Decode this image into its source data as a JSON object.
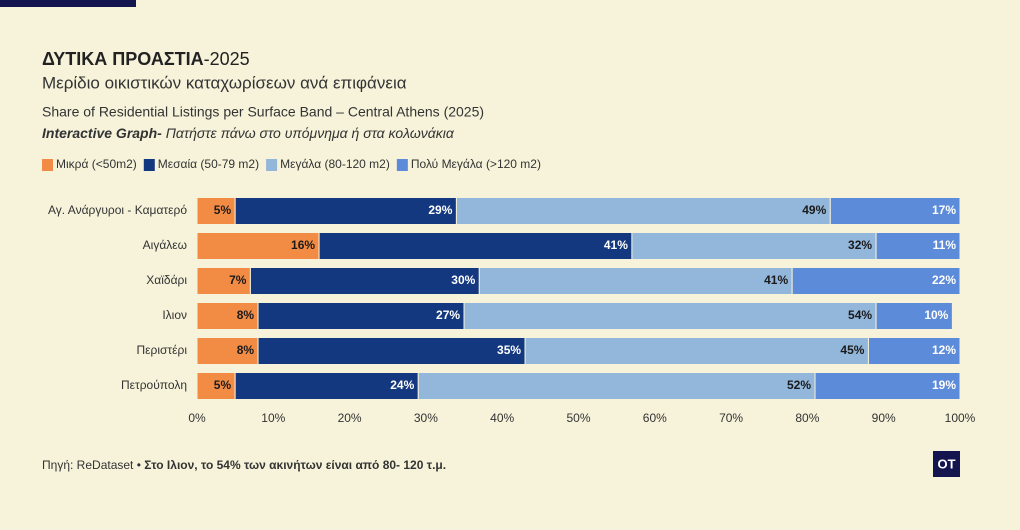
{
  "header": {
    "title_bold": "ΔΥΤΙΚΑ ΠΡΟΑΣΤΙΑ",
    "title_rest": "-2025",
    "subtitle": "Μερίδιο οικιστικών καταχωρίσεων ανά επιφάνεια",
    "subtitle_en": "Share of Residential Listings per Surface Band – Central Athens (2025)",
    "note_bold": "Interactive Graph-",
    "note_rest": " Πατήστε πάνω στο υπόμνημα ή στα κολωνάκια"
  },
  "chart_data": {
    "type": "stacked-bar-horizontal",
    "categories": [
      "Αγ. Ανάργυροι - Καματερό",
      "Αιγάλεω",
      "Χαϊδάρι",
      "Ιλιον",
      "Περιστέρι",
      "Πετρούπολη"
    ],
    "series": [
      {
        "name": "Μικρά (<50m2)",
        "color": "#f28c45",
        "label_color": "#1a1a1a",
        "values": [
          5,
          16,
          7,
          8,
          8,
          5
        ],
        "value_labels": [
          "5%",
          "16%",
          "7%",
          "8%",
          "8%",
          "5%"
        ]
      },
      {
        "name": "Μεσαία (50-79 m2)",
        "color": "#14387f",
        "label_color": "#ffffff",
        "values": [
          29,
          41,
          30,
          27,
          35,
          24
        ],
        "value_labels": [
          "29%",
          "41%",
          "30%",
          "27%",
          "35%",
          "24%"
        ]
      },
      {
        "name": "Μεγάλα (80-120 m2)",
        "color": "#93b6db",
        "label_color": "#1a1a1a",
        "values": [
          49,
          32,
          41,
          54,
          45,
          52
        ],
        "value_labels": [
          "49%",
          "32%",
          "41%",
          "54%",
          "45%",
          "52%"
        ]
      },
      {
        "name": "Πολύ Μεγάλα (>120 m2)",
        "color": "#5b8bd9",
        "label_color": "#ffffff",
        "values": [
          17,
          11,
          22,
          10,
          12,
          19
        ],
        "value_labels": [
          "17%",
          "11%",
          "22%",
          "10%",
          "12%",
          "19%"
        ]
      }
    ],
    "xlim": [
      0,
      100
    ],
    "xticks": [
      {
        "value": 0,
        "label": "0%"
      },
      {
        "value": 10,
        "label": "10%"
      },
      {
        "value": 20,
        "label": "20%"
      },
      {
        "value": 30,
        "label": "30%"
      },
      {
        "value": 40,
        "label": "40%"
      },
      {
        "value": 50,
        "label": "50%"
      },
      {
        "value": 60,
        "label": "60%"
      },
      {
        "value": 70,
        "label": "70%"
      },
      {
        "value": 80,
        "label": "80%"
      },
      {
        "value": 90,
        "label": "90%"
      },
      {
        "value": 100,
        "label": "100%"
      }
    ],
    "grid": false
  },
  "footer": {
    "source": "Πηγή: ReDataset • ",
    "highlight": "Στο Ιλιον, το 54% των ακινήτων είναι από 80- 120 τ.μ.",
    "logo": "OT"
  }
}
